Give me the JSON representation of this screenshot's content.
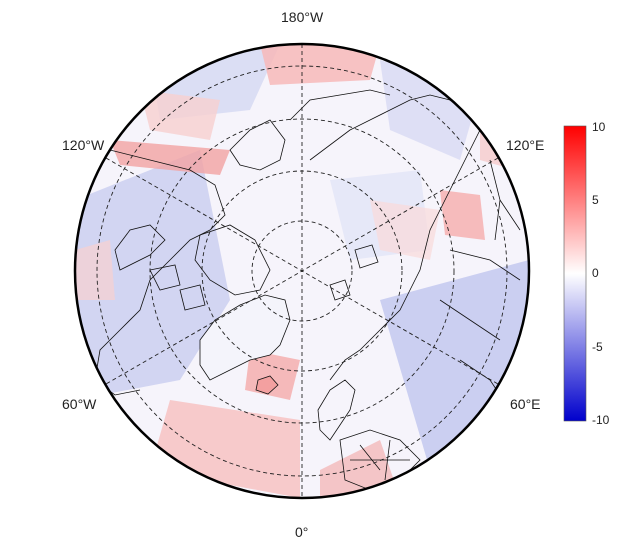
{
  "map": {
    "type": "polar-stereographic",
    "center": "North Pole",
    "longitude_labels": {
      "top": "180°W",
      "upper_left": "120°W",
      "upper_right": "120°E",
      "lower_left": "60°W",
      "lower_right": "60°E",
      "bottom": "0°"
    },
    "graticule": "dashed",
    "field": "diverging anomaly (blue negative, red positive)"
  },
  "colorbar": {
    "min": -10,
    "max": 10,
    "ticks": [
      "10",
      "5",
      "0",
      "-5",
      "-10"
    ],
    "colors": {
      "low": "#0000cc",
      "mid": "#ffffff",
      "high": "#ff0000"
    }
  }
}
